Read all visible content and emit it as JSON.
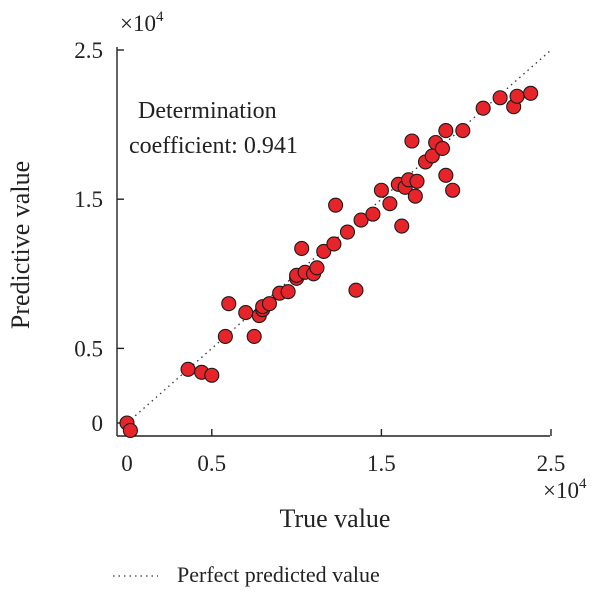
{
  "chart_data": {
    "type": "scatter",
    "title": "",
    "xlabel": "True value",
    "ylabel": "Predictive value",
    "x_multiplier": "×10",
    "x_multiplier_exp": "4",
    "y_multiplier": "×10",
    "y_multiplier_exp": "4",
    "xlim": [
      0,
      2.5
    ],
    "ylim": [
      -0.05,
      2.5
    ],
    "x_ticks": [
      0,
      0.5,
      1.5,
      2.5
    ],
    "x_tick_labels": [
      "0",
      "0.5",
      "1.5",
      "2.5"
    ],
    "y_ticks": [
      0,
      0.5,
      1.5,
      2.5
    ],
    "y_tick_labels": [
      "0",
      "0.5",
      "1.5",
      "2.5"
    ],
    "grid": false,
    "annotation_line1": "Determination",
    "annotation_line2": "coefficient: 0.941",
    "reference_line": {
      "name": "Perfect predicted value",
      "style": "dotted",
      "from": [
        0,
        0
      ],
      "to": [
        2.5,
        2.5
      ]
    },
    "legend": {
      "label": "Perfect predicted value",
      "placement": "bottom"
    },
    "marker_color": "#e8242b",
    "series": [
      {
        "x": [
          0.0,
          0.02,
          0.36,
          0.44,
          0.5,
          0.58,
          0.6,
          0.7,
          0.75,
          0.78,
          0.8,
          0.8,
          0.84,
          0.9,
          0.95,
          1.0,
          1.0,
          1.03,
          1.05,
          1.1,
          1.12,
          1.16,
          1.22,
          1.23,
          1.3,
          1.35,
          1.38,
          1.45,
          1.5,
          1.55,
          1.6,
          1.62,
          1.64,
          1.66,
          1.68,
          1.7,
          1.71,
          1.76,
          1.8,
          1.82,
          1.86,
          1.88,
          1.88,
          1.92,
          1.98,
          2.1,
          2.2,
          2.28,
          2.3,
          2.38
        ],
        "y": [
          0.0,
          -0.05,
          0.36,
          0.34,
          0.32,
          0.58,
          0.8,
          0.74,
          0.58,
          0.72,
          0.76,
          0.78,
          0.8,
          0.87,
          0.88,
          0.97,
          0.99,
          1.17,
          1.01,
          1.0,
          1.04,
          1.15,
          1.2,
          1.46,
          1.28,
          0.89,
          1.36,
          1.4,
          1.56,
          1.47,
          1.6,
          1.32,
          1.58,
          1.63,
          1.89,
          1.52,
          1.62,
          1.75,
          1.79,
          1.88,
          1.84,
          1.66,
          1.96,
          1.56,
          1.96,
          2.11,
          2.18,
          2.12,
          2.19,
          2.21
        ]
      }
    ]
  }
}
